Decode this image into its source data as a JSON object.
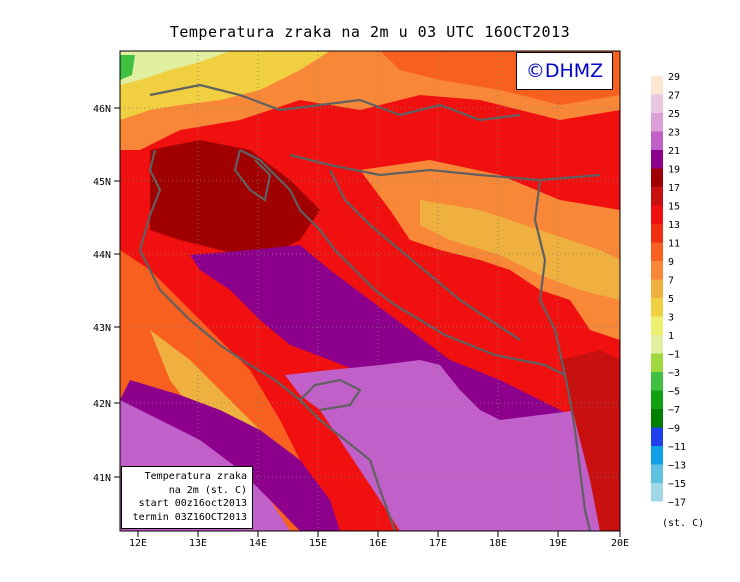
{
  "title": "Temperatura zraka na 2m u 03 UTC 16OCT2013",
  "logo": "©DHMZ",
  "info_box": {
    "line1": "Temperatura zraka",
    "line2": "na 2m (st. C)",
    "line3": "start 00z16oct2013",
    "line4": "termin 03Z16OCT2013"
  },
  "lat_labels": [
    "46N",
    "45N",
    "44N",
    "43N",
    "42N",
    "41N"
  ],
  "lon_labels": [
    "12E",
    "13E",
    "14E",
    "15E",
    "16E",
    "17E",
    "18E",
    "19E",
    "20E"
  ],
  "legend": {
    "unit": "(st. C)",
    "labels": [
      "29",
      "27",
      "25",
      "23",
      "21",
      "19",
      "17",
      "15",
      "13",
      "11",
      "9",
      "7",
      "5",
      "3",
      "1",
      "−1",
      "−3",
      "−5",
      "−7",
      "−9",
      "−11",
      "−13",
      "−15",
      "−17"
    ],
    "colors": [
      "#fde6d2",
      "#e8c8e0",
      "#dc9fd8",
      "#c060c8",
      "#8c008c",
      "#a00000",
      "#c81010",
      "#f01010",
      "#f03010",
      "#f86020",
      "#f88838",
      "#f0b040",
      "#f0d040",
      "#f0f070",
      "#e0f0a0",
      "#a0d840",
      "#40c040",
      "#10a010",
      "#008000",
      "#2040f0",
      "#10a0e8",
      "#60c0e0",
      "#a0d8e8",
      "#e0f8ff"
    ]
  }
}
